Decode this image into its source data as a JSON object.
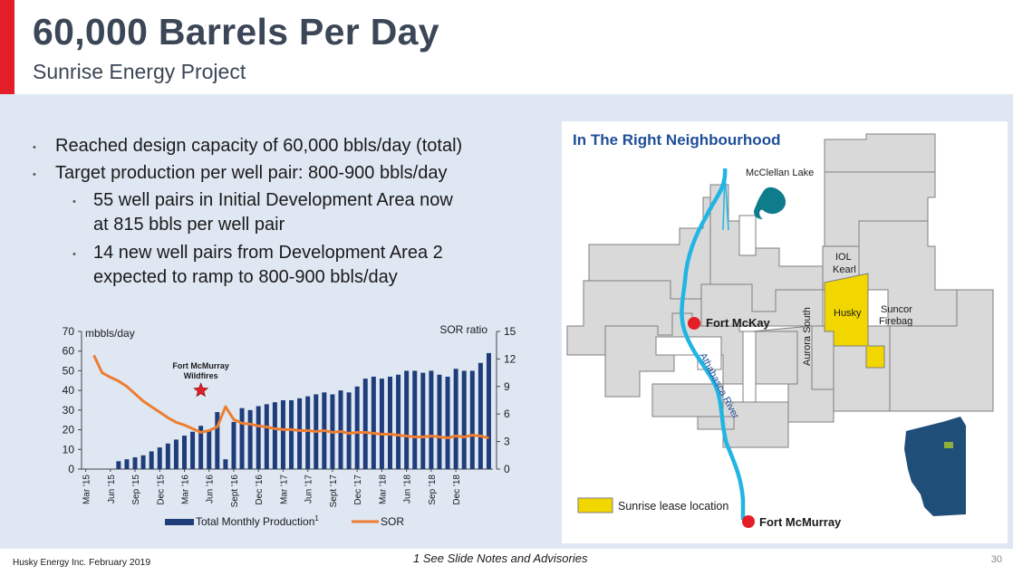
{
  "header": {
    "title": "60,000 Barrels Per Day",
    "subtitle": "Sunrise Energy Project"
  },
  "bullets": [
    {
      "level": 1,
      "text": "Reached design capacity of 60,000 bbls/day (total)"
    },
    {
      "level": 1,
      "text": "Target production per well pair: 800-900 bbls/day"
    },
    {
      "level": 2,
      "lines": [
        "55 well pairs in Initial Development Area now",
        "at 815 bbls per well pair"
      ]
    },
    {
      "level": 2,
      "lines": [
        "14 new well pairs from Development Area 2",
        "expected to ramp to 800-900 bbls/day"
      ]
    }
  ],
  "chart_data": {
    "type": "bar",
    "title": "",
    "ylabel": "mbbls/day",
    "y2label": "SOR ratio",
    "ylim": [
      0,
      70
    ],
    "y2lim": [
      0,
      15
    ],
    "yticks": [
      0,
      10,
      20,
      30,
      40,
      50,
      60,
      70
    ],
    "y2ticks": [
      0,
      3,
      6,
      9,
      12,
      15
    ],
    "x_tick_labels": [
      "Mar '15",
      "Jun '15",
      "Sep '15",
      "Dec '15",
      "Mar '16",
      "Jun '16",
      "Sept '16",
      "Dec '16",
      "Mar '17",
      "Jun '17",
      "Sept '17",
      "Dec '17",
      "Mar '18",
      "Jun '18",
      "Sep '18",
      "Dec '18"
    ],
    "annotation": {
      "label_lines": [
        "Fort McMurray",
        "Wildfires"
      ],
      "month_index": 14
    },
    "legend": [
      {
        "name": "Total Monthly Production",
        "superscript": "1",
        "color": "#1f3d7a",
        "kind": "bar"
      },
      {
        "name": "SOR",
        "color": "#ed7d31",
        "kind": "line"
      }
    ],
    "series": [
      {
        "name": "Total Monthly Production",
        "axis": "left",
        "values": [
          0,
          0,
          0,
          0,
          4,
          5,
          6,
          7,
          9,
          11,
          13,
          15,
          17,
          19,
          22,
          20,
          29,
          5,
          24,
          31,
          30,
          32,
          33,
          34,
          35,
          35,
          36,
          37,
          38,
          39,
          38,
          40,
          39,
          42,
          46,
          47,
          46,
          47,
          48,
          50,
          50,
          49,
          50,
          48,
          47,
          51,
          50,
          50,
          54,
          59
        ]
      },
      {
        "name": "SOR",
        "axis": "right",
        "values": [
          null,
          12.4,
          10.5,
          10.0,
          9.6,
          9.0,
          8.2,
          7.4,
          6.8,
          6.2,
          5.6,
          5.1,
          4.8,
          4.4,
          4.0,
          4.2,
          4.6,
          6.8,
          5.4,
          5.0,
          4.9,
          4.7,
          4.6,
          4.4,
          4.3,
          4.3,
          4.2,
          4.2,
          4.1,
          4.2,
          4.0,
          4.1,
          3.9,
          4.0,
          4.0,
          3.9,
          3.8,
          3.8,
          3.7,
          3.6,
          3.5,
          3.5,
          3.6,
          3.5,
          3.4,
          3.6,
          3.5,
          3.7,
          3.6,
          3.4
        ]
      }
    ]
  },
  "map": {
    "title": "In The Right Neighbourhood",
    "labels": {
      "mcclellan_lake": "McClellan Lake",
      "iol_kearl_1": "IOL",
      "iol_kearl_2": "Kearl",
      "husky": "Husky",
      "suncor_1": "Suncor",
      "suncor_2": "Firebag",
      "fort_mckay": "Fort McKay",
      "aurora_south": "Aurora South",
      "athabasca_river": "Athabasca River",
      "fort_mcmurray": "Fort McMurray"
    },
    "legend_label": "Sunrise lease location",
    "colors": {
      "lease": "#f2d600",
      "parcels": "#d9d9d9",
      "river": "#21b5e4",
      "town": "#e31e26",
      "alberta": "#1f4e79"
    }
  },
  "footer": {
    "company": "Husky Energy Inc.",
    "date": "February 2019",
    "note": "1 See Slide Notes and Advisories",
    "page": "30"
  }
}
